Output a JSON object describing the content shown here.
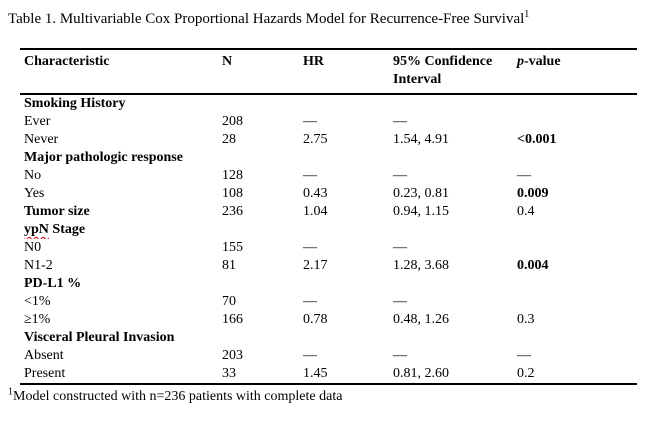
{
  "title": {
    "text": "Table 1. Multivariable Cox Proportional Hazards Model for Recurrence-Free Survival",
    "sup": "1"
  },
  "table": {
    "headers": {
      "characteristic": "Characteristic",
      "n": "N",
      "hr": "HR",
      "ci": "95% Confidence Interval",
      "p_italic": "p",
      "p_rest": "-value"
    },
    "rows": [
      {
        "style": "section",
        "label": "Smoking History",
        "n": "",
        "hr": "",
        "ci": "",
        "p": "",
        "p_bold": false
      },
      {
        "style": "sub",
        "label": "Ever",
        "n": "208",
        "hr": "—",
        "ci": "—",
        "p": "",
        "p_bold": false
      },
      {
        "style": "sub",
        "label": "Never",
        "n": "28",
        "hr": "2.75",
        "ci": "1.54, 4.91",
        "p": "<0.001",
        "p_bold": true
      },
      {
        "style": "section",
        "label": "Major pathologic response",
        "n": "",
        "hr": "",
        "ci": "",
        "p": "",
        "p_bold": false
      },
      {
        "style": "sub",
        "label": "No",
        "n": "128",
        "hr": "—",
        "ci": "—",
        "p": "—",
        "p_bold": false
      },
      {
        "style": "sub",
        "label": "Yes",
        "n": "108",
        "hr": "0.43",
        "ci": "0.23, 0.81",
        "p": "0.009",
        "p_bold": true
      },
      {
        "style": "section",
        "label": "Tumor size",
        "n": "236",
        "hr": "1.04",
        "ci": "0.94, 1.15",
        "p": "0.4",
        "p_bold": false
      },
      {
        "style": "section",
        "label": "ypN Stage",
        "squiggle": "ypN",
        "label_rest": " Stage",
        "n": "",
        "hr": "",
        "ci": "",
        "p": "",
        "p_bold": false
      },
      {
        "style": "sub",
        "label": "N0",
        "n": "155",
        "hr": "—",
        "ci": "—",
        "p": "",
        "p_bold": false
      },
      {
        "style": "sub",
        "label": "N1-2",
        "n": "81",
        "hr": "2.17",
        "ci": "1.28, 3.68",
        "p": "0.004",
        "p_bold": true
      },
      {
        "style": "section",
        "label": "PD-L1 %",
        "n": "",
        "hr": "",
        "ci": "",
        "p": "",
        "p_bold": false
      },
      {
        "style": "sub",
        "label": "<1%",
        "n": "70",
        "hr": "—",
        "ci": "—",
        "p": "",
        "p_bold": false
      },
      {
        "style": "sub",
        "label": "≥1%",
        "n": "166",
        "hr": "0.78",
        "ci": "0.48, 1.26",
        "p": "0.3",
        "p_bold": false
      },
      {
        "style": "section",
        "label": "Visceral Pleural Invasion",
        "n": "",
        "hr": "",
        "ci": "",
        "p": "",
        "p_bold": false
      },
      {
        "style": "plain",
        "label": "Absent",
        "n": "203",
        "hr": "—",
        "ci": "—",
        "p": "—",
        "p_bold": false
      },
      {
        "style": "plain",
        "label": "Present",
        "n": "33",
        "hr": "1.45",
        "ci": "0.81, 2.60",
        "p": "0.2",
        "p_bold": false
      }
    ]
  },
  "footnote": {
    "sup": "1",
    "text": "Model constructed with n=236 patients with complete data"
  }
}
